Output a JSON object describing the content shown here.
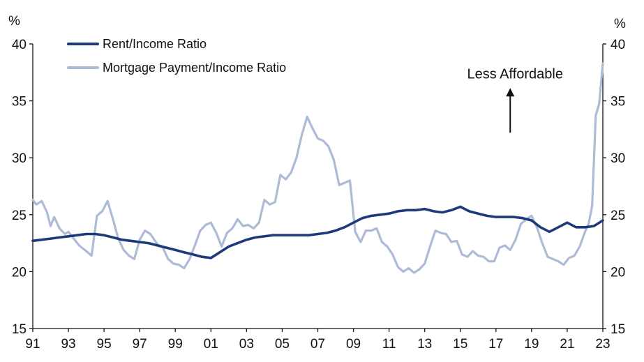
{
  "chart_data": {
    "type": "line",
    "y_unit_left": "%",
    "y_unit_right": "%",
    "ylim": [
      15,
      40
    ],
    "yticks": [
      15,
      20,
      25,
      30,
      35,
      40
    ],
    "xlim": [
      1991,
      2023
    ],
    "xticks": [
      1991,
      1993,
      1995,
      1997,
      1999,
      2001,
      2003,
      2005,
      2007,
      2009,
      2011,
      2013,
      2015,
      2017,
      2019,
      2021,
      2023
    ],
    "xtick_labels": [
      "91",
      "93",
      "95",
      "97",
      "99",
      "01",
      "03",
      "05",
      "07",
      "09",
      "11",
      "13",
      "15",
      "17",
      "19",
      "21",
      "23"
    ],
    "legend_position": "top-left",
    "annotation": {
      "text": "Less Affordable",
      "x": 2017.8,
      "y": 37.4,
      "arrow_from": [
        2017.8,
        32.2
      ],
      "arrow_to": [
        2017.8,
        36.0
      ]
    },
    "series": [
      {
        "name": "Rent/Income Ratio",
        "color": "#1f3a7a",
        "x": [
          1991.0,
          1991.5,
          1992.0,
          1992.5,
          1993.0,
          1993.5,
          1994.0,
          1994.5,
          1995.0,
          1995.5,
          1996.0,
          1996.5,
          1997.0,
          1997.5,
          1998.0,
          1998.5,
          1999.0,
          1999.5,
          2000.0,
          2000.5,
          2001.0,
          2001.5,
          2002.0,
          2002.5,
          2003.0,
          2003.5,
          2004.0,
          2004.5,
          2005.0,
          2005.5,
          2006.0,
          2006.5,
          2007.0,
          2007.5,
          2008.0,
          2008.5,
          2009.0,
          2009.5,
          2010.0,
          2010.5,
          2011.0,
          2011.5,
          2012.0,
          2012.5,
          2013.0,
          2013.5,
          2014.0,
          2014.5,
          2015.0,
          2015.5,
          2016.0,
          2016.5,
          2017.0,
          2017.5,
          2018.0,
          2018.5,
          2019.0,
          2019.5,
          2020.0,
          2020.5,
          2021.0,
          2021.5,
          2022.0,
          2022.5,
          2023.0
        ],
        "values": [
          22.7,
          22.8,
          22.9,
          23.0,
          23.1,
          23.2,
          23.3,
          23.3,
          23.2,
          23.0,
          22.8,
          22.7,
          22.6,
          22.5,
          22.3,
          22.1,
          21.9,
          21.7,
          21.5,
          21.3,
          21.2,
          21.7,
          22.2,
          22.5,
          22.8,
          23.0,
          23.1,
          23.2,
          23.2,
          23.2,
          23.2,
          23.2,
          23.3,
          23.4,
          23.6,
          23.9,
          24.3,
          24.7,
          24.9,
          25.0,
          25.1,
          25.3,
          25.4,
          25.4,
          25.5,
          25.3,
          25.2,
          25.4,
          25.7,
          25.3,
          25.1,
          24.9,
          24.8,
          24.8,
          24.8,
          24.7,
          24.5,
          23.9,
          23.5,
          23.9,
          24.3,
          23.9,
          23.9,
          24.0,
          24.5
        ]
      },
      {
        "name": "Mortgage Payment/Income Ratio",
        "color": "#aebbd6",
        "x": [
          1991.0,
          1991.2,
          1991.5,
          1991.8,
          1992.0,
          1992.2,
          1992.5,
          1992.8,
          1993.0,
          1993.3,
          1993.6,
          1994.0,
          1994.3,
          1994.6,
          1994.9,
          1995.2,
          1995.5,
          1995.8,
          1996.1,
          1996.4,
          1996.7,
          1997.0,
          1997.3,
          1997.6,
          1998.0,
          1998.3,
          1998.6,
          1998.9,
          1999.2,
          1999.5,
          1999.8,
          2000.1,
          2000.4,
          2000.7,
          2001.0,
          2001.3,
          2001.6,
          2001.9,
          2002.2,
          2002.5,
          2002.8,
          2003.1,
          2003.4,
          2003.7,
          2004.0,
          2004.3,
          2004.6,
          2004.9,
          2005.2,
          2005.5,
          2005.8,
          2006.1,
          2006.4,
          2006.7,
          2007.0,
          2007.3,
          2007.6,
          2007.9,
          2008.2,
          2008.5,
          2008.8,
          2009.1,
          2009.4,
          2009.7,
          2010.0,
          2010.3,
          2010.6,
          2010.9,
          2011.2,
          2011.5,
          2011.8,
          2012.1,
          2012.4,
          2012.7,
          2013.0,
          2013.3,
          2013.6,
          2013.9,
          2014.2,
          2014.5,
          2014.8,
          2015.1,
          2015.4,
          2015.7,
          2016.0,
          2016.3,
          2016.6,
          2016.9,
          2017.2,
          2017.5,
          2017.8,
          2018.1,
          2018.4,
          2018.7,
          2019.0,
          2019.3,
          2019.6,
          2019.9,
          2020.2,
          2020.5,
          2020.8,
          2021.1,
          2021.4,
          2021.7,
          2022.0,
          2022.2,
          2022.4,
          2022.6,
          2022.8,
          2023.0
        ],
        "values": [
          26.3,
          25.9,
          26.2,
          25.2,
          24.0,
          24.8,
          23.8,
          23.3,
          23.5,
          22.9,
          22.3,
          21.8,
          21.4,
          24.9,
          25.3,
          26.2,
          24.6,
          22.9,
          21.9,
          21.4,
          21.1,
          22.8,
          23.6,
          23.3,
          22.4,
          22.1,
          21.1,
          20.7,
          20.6,
          20.3,
          21.1,
          22.3,
          23.6,
          24.1,
          24.3,
          23.4,
          22.2,
          23.4,
          23.8,
          24.6,
          24.0,
          24.1,
          23.8,
          24.3,
          26.3,
          25.9,
          26.1,
          28.5,
          28.1,
          28.7,
          30.0,
          32.0,
          33.6,
          32.6,
          31.7,
          31.5,
          31.0,
          29.8,
          27.6,
          27.8,
          28.0,
          23.5,
          22.6,
          23.6,
          23.6,
          23.8,
          22.6,
          22.2,
          21.5,
          20.4,
          20.0,
          20.3,
          19.9,
          20.2,
          20.7,
          22.2,
          23.6,
          23.4,
          23.3,
          22.6,
          22.7,
          21.5,
          21.3,
          21.8,
          21.4,
          21.3,
          20.9,
          20.9,
          22.1,
          22.3,
          21.9,
          22.8,
          24.2,
          24.6,
          24.9,
          23.9,
          22.5,
          21.3,
          21.1,
          20.9,
          20.6,
          21.2,
          21.4,
          22.2,
          23.5,
          24.2,
          25.8,
          33.7,
          34.8,
          38.3
        ]
      }
    ]
  }
}
